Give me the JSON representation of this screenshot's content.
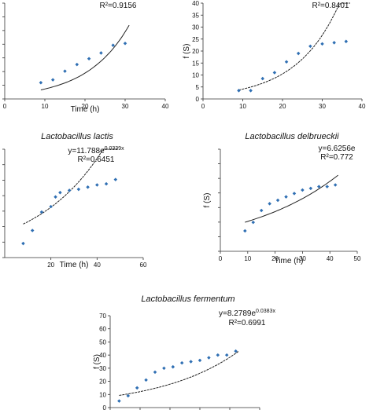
{
  "chart_data": [
    {
      "type": "scatter",
      "title": "",
      "xlabel": "Time (h)",
      "ylabel": "",
      "xlim": [
        0,
        40
      ],
      "ylim": [
        0,
        50
      ],
      "xticks": [
        "0",
        "10",
        "20",
        "30",
        "40"
      ],
      "yticks": [],
      "equation": "",
      "r2": "R²=0.9156",
      "trend": {
        "a": 2.0,
        "b": 0.0954
      },
      "points": [
        [
          9,
          8.5
        ],
        [
          12,
          10
        ],
        [
          15,
          14.5
        ],
        [
          18,
          18
        ],
        [
          21,
          21
        ],
        [
          24,
          24
        ],
        [
          27,
          28
        ],
        [
          30,
          29
        ]
      ]
    },
    {
      "type": "scatter",
      "title": "",
      "xlabel": "",
      "ylabel": "f (S)",
      "xlim": [
        0,
        40
      ],
      "ylim": [
        0,
        40
      ],
      "xticks": [
        "0",
        "10",
        "20",
        "30",
        "40"
      ],
      "yticks": [
        "0",
        "5",
        "10",
        "15",
        "20",
        "25",
        "30",
        "35",
        "40"
      ],
      "equation": "",
      "r2": "R²=0.8401",
      "trend": {
        "a": 1.62,
        "b": 0.0933
      },
      "points": [
        [
          9,
          3.5
        ],
        [
          12,
          3.5
        ],
        [
          15,
          8.5
        ],
        [
          18,
          11
        ],
        [
          21,
          15.5
        ],
        [
          24,
          19
        ],
        [
          27,
          22
        ],
        [
          30,
          23
        ],
        [
          33,
          23.5
        ],
        [
          36,
          24
        ]
      ]
    },
    {
      "type": "scatter",
      "title": "Lactobacillus lactis",
      "xlabel": "Time (h)",
      "ylabel": "",
      "xlim": [
        0,
        60
      ],
      "ylim": [
        0,
        50
      ],
      "xticks": [
        "20",
        "40",
        "60"
      ],
      "yticks": [],
      "equation": "y=11.788e0.0339x",
      "r2": "R²=0.6451",
      "trend": {
        "a": 11.788,
        "b": 0.0339
      },
      "points": [
        [
          8,
          6.5
        ],
        [
          12,
          12.5
        ],
        [
          16,
          21
        ],
        [
          20,
          23.5
        ],
        [
          22,
          28
        ],
        [
          24,
          30
        ],
        [
          28,
          31
        ],
        [
          32,
          31.5
        ],
        [
          36,
          32.5
        ],
        [
          40,
          33.5
        ],
        [
          44,
          34
        ],
        [
          48,
          36
        ]
      ]
    },
    {
      "type": "scatter",
      "title": "Lactobacillus delbrueckii",
      "xlabel": "Time (h)",
      "ylabel": "f (S)",
      "xlim": [
        0,
        50
      ],
      "ylim": [
        0,
        30
      ],
      "xticks": [
        "0",
        "10",
        "20",
        "30",
        "40",
        "50"
      ],
      "yticks": [],
      "equation": "y=6.6256e",
      "r2": "R²=0.772",
      "trend": {
        "a": 6.6256,
        "b": 0.0283
      },
      "points": [
        [
          9,
          6
        ],
        [
          12,
          8.5
        ],
        [
          15,
          12
        ],
        [
          18,
          14
        ],
        [
          21,
          15
        ],
        [
          24,
          16
        ],
        [
          27,
          17
        ],
        [
          30,
          18
        ],
        [
          33,
          18.5
        ],
        [
          36,
          19
        ],
        [
          39,
          19
        ],
        [
          42,
          19.5
        ]
      ]
    },
    {
      "type": "scatter",
      "title": "Lactobacillus fermentum",
      "xlabel": "",
      "ylabel": "f (S)",
      "xlim": [
        0,
        50
      ],
      "ylim": [
        0,
        70
      ],
      "xticks": [],
      "yticks": [
        "0",
        "10",
        "20",
        "30",
        "40",
        "50",
        "60",
        "70"
      ],
      "equation": "y=8.2789e0.0383x",
      "r2": "R²=0.6991",
      "trend": {
        "a": 8.2789,
        "b": 0.0383
      },
      "points": [
        [
          3,
          5
        ],
        [
          6,
          9
        ],
        [
          9,
          15
        ],
        [
          12,
          21
        ],
        [
          15,
          27
        ],
        [
          18,
          30
        ],
        [
          21,
          31
        ],
        [
          24,
          34
        ],
        [
          27,
          35
        ],
        [
          30,
          36
        ],
        [
          33,
          38
        ],
        [
          36,
          40
        ],
        [
          39,
          40
        ],
        [
          42,
          43
        ]
      ]
    }
  ],
  "style": {
    "point_color": "#2f6fb3",
    "line_color": "#222222"
  }
}
